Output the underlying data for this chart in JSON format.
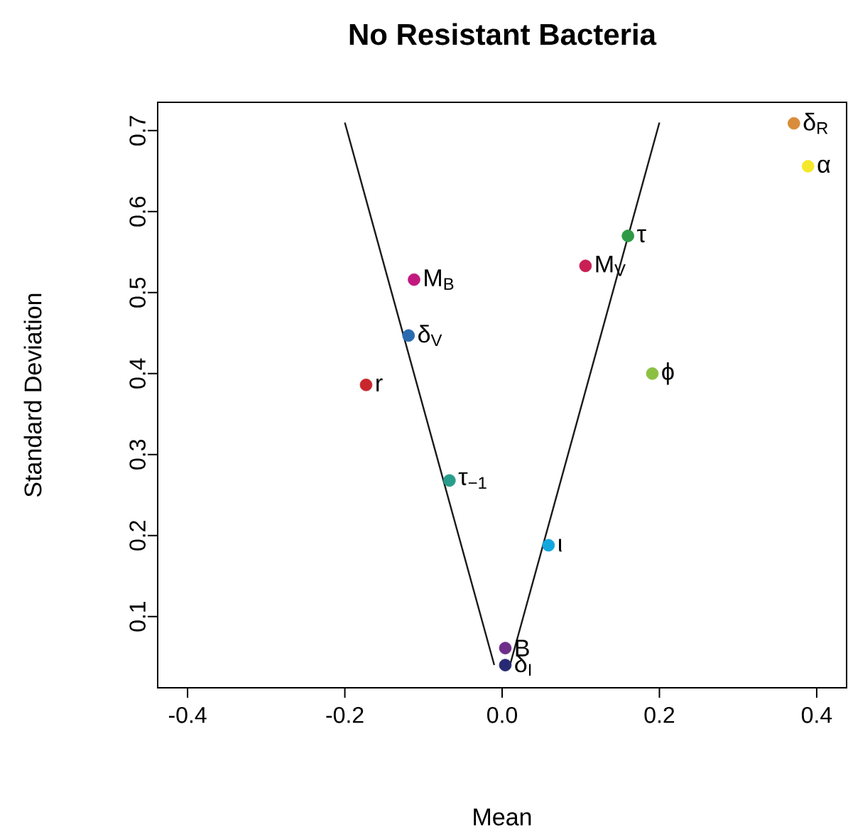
{
  "chart_data": {
    "type": "scatter",
    "title": "No Resistant Bacteria",
    "xlabel": "Mean",
    "ylabel": "Standard Deviation",
    "xlim": [
      -0.438,
      0.438
    ],
    "ylim": [
      0.012,
      0.735
    ],
    "xticks": [
      -0.4,
      -0.2,
      {
        "value": 0,
        "label": "0.0"
      },
      0.2,
      0.4
    ],
    "yticks": [
      0.1,
      0.2,
      0.3,
      0.4,
      0.5,
      0.6,
      0.7
    ],
    "marker": "circle",
    "series": [
      {
        "type": "line",
        "color": "#1a1a1a",
        "x": [
          -0.2,
          -0.01
        ],
        "values": [
          0.71,
          0.04
        ],
        "marker": "none"
      },
      {
        "type": "line",
        "color": "#1a1a1a",
        "x": [
          0.01,
          0.2
        ],
        "values": [
          0.04,
          0.71
        ],
        "marker": "none"
      },
      {
        "name": "δ$_{R}$",
        "color": "#d98c3a",
        "x": [
          0.371
        ],
        "values": [
          0.709
        ]
      },
      {
        "name": "α",
        "color": "#f5e82a",
        "x": [
          0.389
        ],
        "values": [
          0.656
        ]
      },
      {
        "name": "τ",
        "color": "#2e9a46",
        "x": [
          0.16
        ],
        "values": [
          0.57
        ]
      },
      {
        "name": "M$_{V}$",
        "color": "#c81f55",
        "x": [
          0.106
        ],
        "values": [
          0.533
        ]
      },
      {
        "name": "M$_{B}$",
        "color": "#c2197f",
        "x": [
          -0.112
        ],
        "values": [
          0.516
        ]
      },
      {
        "name": "δ$_{V}$",
        "color": "#2a6bb0",
        "x": [
          -0.119
        ],
        "values": [
          0.447
        ]
      },
      {
        "name": "r",
        "color": "#c8262c",
        "x": [
          -0.173
        ],
        "values": [
          0.386
        ]
      },
      {
        "name": "ϕ",
        "color": "#8cc043",
        "x": [
          0.191
        ],
        "values": [
          0.4
        ]
      },
      {
        "name": "τ$_{−1}$",
        "color": "#2a9c8c",
        "x": [
          -0.067
        ],
        "values": [
          0.268
        ]
      },
      {
        "name": "ι",
        "color": "#13a7e0",
        "x": [
          0.059
        ],
        "values": [
          0.188
        ]
      },
      {
        "name": "B",
        "color": "#6e2e8a",
        "x": [
          0.004
        ],
        "values": [
          0.061
        ]
      },
      {
        "name": "δ$_{I}$",
        "color": "#272a72",
        "x": [
          0.004
        ],
        "values": [
          0.04
        ]
      }
    ]
  }
}
